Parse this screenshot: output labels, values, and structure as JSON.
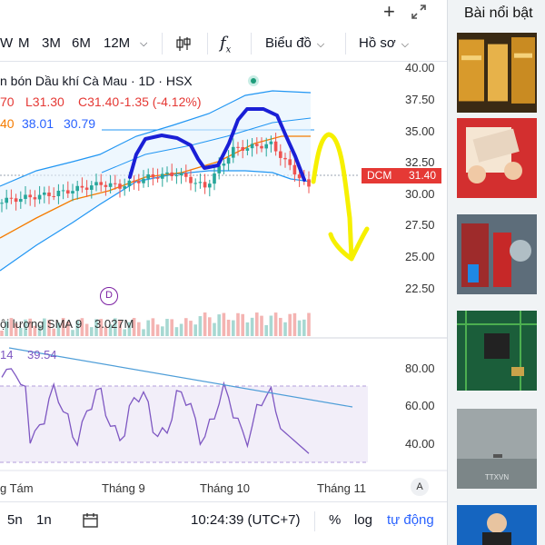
{
  "toolbar": {
    "timeframes": [
      "W",
      "M",
      "3M",
      "6M",
      "12M"
    ],
    "chart_type_label": "Biểu đồ",
    "profile_label": "Hồ sơ"
  },
  "legend": {
    "title": "n bón Dầu khí Cà Mau · 1D · HSX",
    "ohlc_left": "70",
    "low": "L31.30",
    "close": "C31.40",
    "change": "-1.35 (-4.12%)",
    "bb_left": "40",
    "bb_mid": "38.01",
    "bb_low": "30.79"
  },
  "price_tag": {
    "symbol": "DCM",
    "price": "31.40"
  },
  "price_axis": [
    "40.00",
    "37.50",
    "35.00",
    "32.50",
    "30.00",
    "27.50",
    "25.00",
    "22.50"
  ],
  "volume": {
    "label": "ội lượng SMA 9",
    "value": "3.027M"
  },
  "rsi": {
    "left": "14",
    "value": "39.54",
    "axis": [
      "80.00",
      "60.00",
      "40.00"
    ]
  },
  "time_axis": [
    "g Tám",
    "Tháng 9",
    "Tháng 10",
    "Tháng 11"
  ],
  "auto_label": "A",
  "dividend_marker": "D",
  "bottom": {
    "intervals": [
      "5n",
      "1n"
    ],
    "clock": "10:24:39 (UTC+7)",
    "percent": "%",
    "log": "log",
    "auto": "tự động"
  },
  "sidebar": {
    "title": "Bài nổi bật"
  },
  "colors": {
    "up": "#26a69a",
    "down": "#ef5350",
    "bb": "#2196f3",
    "sma": "#f57c00",
    "rsi": "#7e57c2",
    "annot_blue": "#1a1fd6",
    "annot_yellow": "#f6f000"
  }
}
